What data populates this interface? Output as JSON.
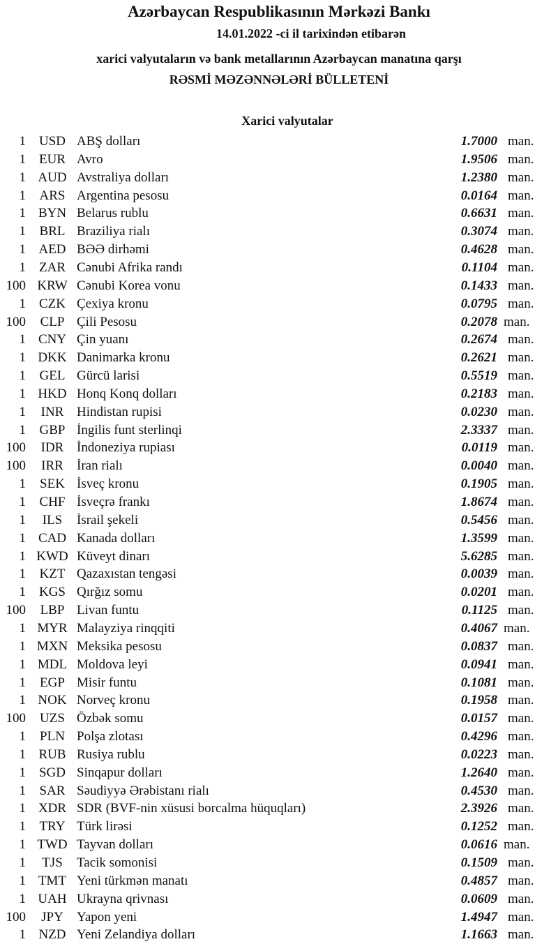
{
  "header": {
    "title": "Azərbaycan Respublikasının Mərkəzi Bankı",
    "date_line": "14.01.2022  -ci il tarixindən etibarən",
    "subtitle": "xarici valyutaların və bank metallarının Azərbaycan manatına qarşı",
    "bulletin": "RƏSMİ MƏZƏNNƏLƏRİ BÜLLETENİ"
  },
  "section_title": "Xarici valyutalar",
  "unit": "man.",
  "rows": [
    [
      "1",
      "USD",
      "ABŞ dolları",
      "1.7000"
    ],
    [
      "1",
      "EUR",
      "Avro",
      "1.9506"
    ],
    [
      "1",
      "AUD",
      "Avstraliya dolları",
      "1.2380"
    ],
    [
      "1",
      "ARS",
      "Argentina pesosu",
      "0.0164"
    ],
    [
      "1",
      "BYN",
      "Belarus rublu",
      "0.6631"
    ],
    [
      "1",
      "BRL",
      "Braziliya rialı",
      "0.3074"
    ],
    [
      "1",
      "AED",
      "BƏƏ dirhəmi",
      "0.4628"
    ],
    [
      "1",
      "ZAR",
      "Cənubi Afrika randı",
      "0.1104"
    ],
    [
      "100",
      "KRW",
      "Cənubi Korea vonu",
      "0.1433"
    ],
    [
      "1",
      "CZK",
      "Çexiya kronu",
      "0.0795"
    ],
    [
      "100",
      "CLP",
      "Çili Pesosu",
      "0.2078"
    ],
    [
      "1",
      "CNY",
      "Çin yuanı",
      "0.2674"
    ],
    [
      "1",
      "DKK",
      "Danimarka kronu",
      "0.2621"
    ],
    [
      "1",
      "GEL",
      "Gürcü larisi",
      "0.5519"
    ],
    [
      "1",
      "HKD",
      "Honq Konq dolları",
      "0.2183"
    ],
    [
      "1",
      "INR",
      "Hindistan rupisi",
      "0.0230"
    ],
    [
      "1",
      "GBP",
      "İngilis funt sterlinqi",
      "2.3337"
    ],
    [
      "100",
      "IDR",
      "İndoneziya rupiası",
      "0.0119"
    ],
    [
      "100",
      "IRR",
      "İran rialı",
      "0.0040"
    ],
    [
      "1",
      "SEK",
      "İsveç kronu",
      "0.1905"
    ],
    [
      "1",
      "CHF",
      "İsveçrə frankı",
      "1.8674"
    ],
    [
      "1",
      "ILS",
      "İsrail şekeli",
      "0.5456"
    ],
    [
      "1",
      "CAD",
      "Kanada dolları",
      "1.3599"
    ],
    [
      "1",
      "KWD",
      "Küveyt dinarı",
      "5.6285"
    ],
    [
      "1",
      "KZT",
      "Qazaxıstan tengəsi",
      "0.0039"
    ],
    [
      "1",
      "KGS",
      "Qırğız somu",
      "0.0201"
    ],
    [
      "100",
      "LBP",
      "Livan funtu",
      "0.1125"
    ],
    [
      "1",
      "MYR",
      "Malayziya rinqqiti",
      "0.4067"
    ],
    [
      "1",
      "MXN",
      "Meksika pesosu",
      "0.0837"
    ],
    [
      "1",
      "MDL",
      "Moldova leyi",
      "0.0941"
    ],
    [
      "1",
      "EGP",
      "Misir funtu",
      "0.1081"
    ],
    [
      "1",
      "NOK",
      "Norveç kronu",
      "0.1958"
    ],
    [
      "100",
      "UZS",
      "Özbək somu",
      "0.0157"
    ],
    [
      "1",
      "PLN",
      "Polşa zlotası",
      "0.4296"
    ],
    [
      "1",
      "RUB",
      "Rusiya rublu",
      "0.0223"
    ],
    [
      "1",
      "SGD",
      "Sinqapur dolları",
      "1.2640"
    ],
    [
      "1",
      "SAR",
      "Səudiyyə Ərəbistanı rialı",
      "0.4530"
    ],
    [
      "1",
      "XDR",
      "SDR (BVF-nin xüsusi borcalma hüquqları)",
      "2.3926"
    ],
    [
      "1",
      "TRY",
      "Türk lirəsi",
      "0.1252"
    ],
    [
      "1",
      "TWD",
      "Tayvan dolları",
      "0.0616"
    ],
    [
      "1",
      "TJS",
      "Tacik somonisi",
      "0.1509"
    ],
    [
      "1",
      "TMT",
      "Yeni türkmən manatı",
      "0.4857"
    ],
    [
      "1",
      "UAH",
      "Ukrayna qrivnası",
      "0.0609"
    ],
    [
      "100",
      "JPY",
      "Yapon yeni",
      "1.4947"
    ],
    [
      "1",
      "NZD",
      "Yeni Zelandiya dolları",
      "1.1663"
    ]
  ]
}
